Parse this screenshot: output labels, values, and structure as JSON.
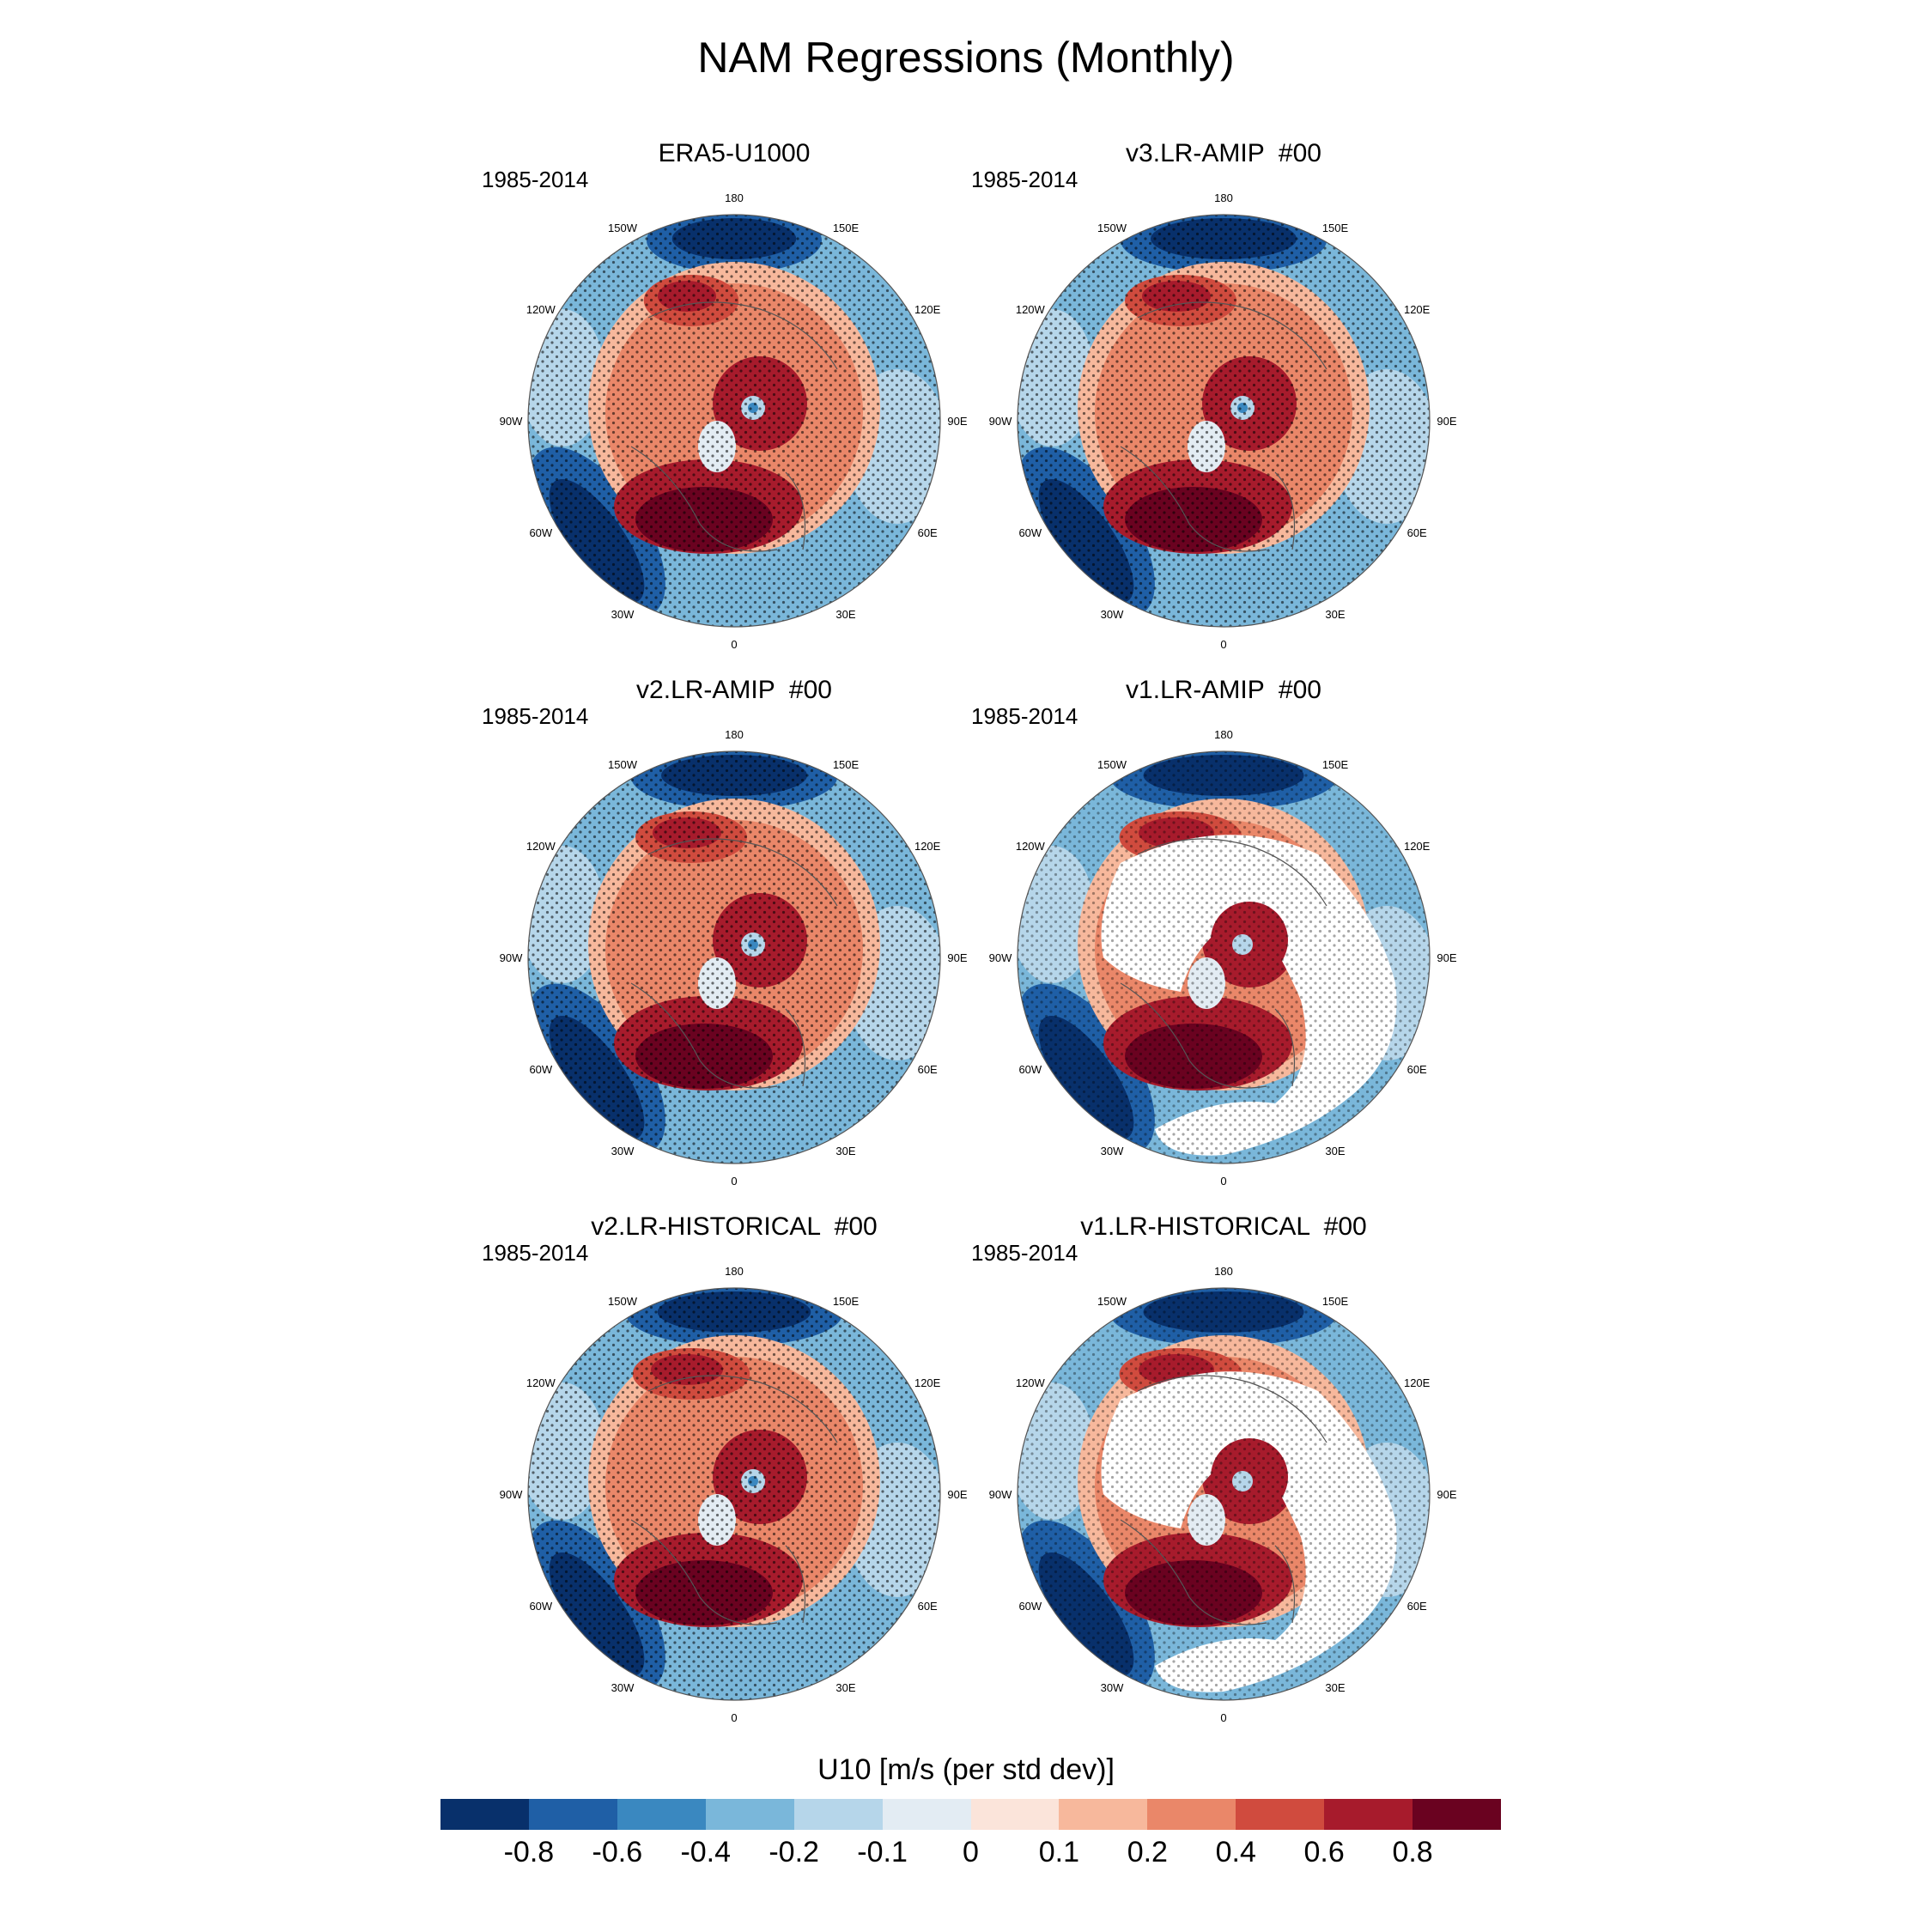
{
  "figure": {
    "title": "NAM Regressions (Monthly)"
  },
  "panels": [
    {
      "title": "ERA5-U1000",
      "period": "1985-2014",
      "masked": false,
      "strength": 0.85
    },
    {
      "title": "v3.LR-AMIP  #00",
      "period": "1985-2014",
      "masked": false,
      "strength": 1.0
    },
    {
      "title": "v2.LR-AMIP  #00",
      "period": "1985-2014",
      "masked": false,
      "strength": 1.0
    },
    {
      "title": "v1.LR-AMIP  #00",
      "period": "1985-2014",
      "masked": true,
      "strength": 1.1
    },
    {
      "title": "v2.LR-HISTORICAL  #00",
      "period": "1985-2014",
      "masked": false,
      "strength": 1.05
    },
    {
      "title": "v1.LR-HISTORICAL  #00",
      "period": "1985-2014",
      "masked": true,
      "strength": 1.1
    }
  ],
  "longitude_labels": [
    {
      "deg": 0,
      "label": "0"
    },
    {
      "deg": 30,
      "label": "30E"
    },
    {
      "deg": 60,
      "label": "60E"
    },
    {
      "deg": 90,
      "label": "90E"
    },
    {
      "deg": 120,
      "label": "120E"
    },
    {
      "deg": 150,
      "label": "150E"
    },
    {
      "deg": 180,
      "label": "180"
    },
    {
      "deg": 210,
      "label": "150W"
    },
    {
      "deg": 240,
      "label": "120W"
    },
    {
      "deg": 270,
      "label": "90W"
    },
    {
      "deg": 300,
      "label": "60W"
    },
    {
      "deg": 330,
      "label": "30W"
    }
  ],
  "colorbar": {
    "title": "U10 [m/s (per std dev)]",
    "colors": [
      "#08306b",
      "#1f5fa6",
      "#3a88c0",
      "#7ab7da",
      "#b6d6ea",
      "#e3ecf3",
      "#fbe4da",
      "#f7b89c",
      "#ea8769",
      "#d04b3e",
      "#a71b2c",
      "#6a0220"
    ],
    "tick_labels": [
      "-0.8",
      "-0.6",
      "-0.4",
      "-0.2",
      "-0.1",
      "0",
      "0.1",
      "0.2",
      "0.4",
      "0.6",
      "0.8"
    ]
  }
}
